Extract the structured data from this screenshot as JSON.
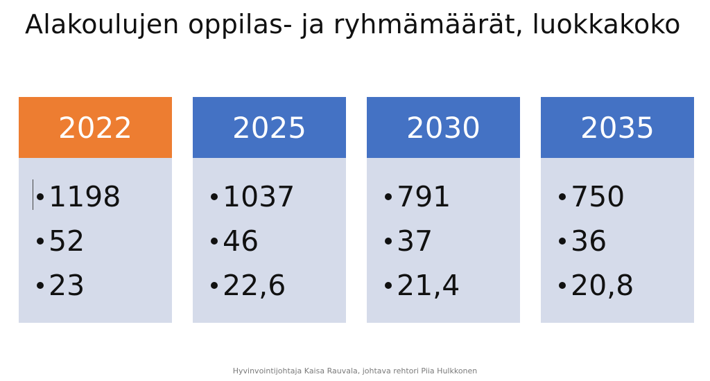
{
  "title": "Alakoulujen oppilas- ja ryhmämäärät, luokkakoko",
  "colors": {
    "orange_header": "#ed7d31",
    "blue_header": "#4472c4",
    "card_body": "#d5dbea"
  },
  "cards": [
    {
      "year": "2022",
      "header_color": "#ed7d31",
      "items": [
        "1198",
        "52",
        "23"
      ]
    },
    {
      "year": "2025",
      "header_color": "#4472c4",
      "items": [
        "1037",
        "46",
        "22,6"
      ]
    },
    {
      "year": "2030",
      "header_color": "#4472c4",
      "items": [
        "791",
        "37",
        "21,4"
      ]
    },
    {
      "year": "2035",
      "header_color": "#4472c4",
      "items": [
        "750",
        "36",
        "20,8"
      ]
    }
  ],
  "footer": "Hyvinvointijohtaja Kaisa Rauvala, johtava rehtori Piia Hulkkonen"
}
